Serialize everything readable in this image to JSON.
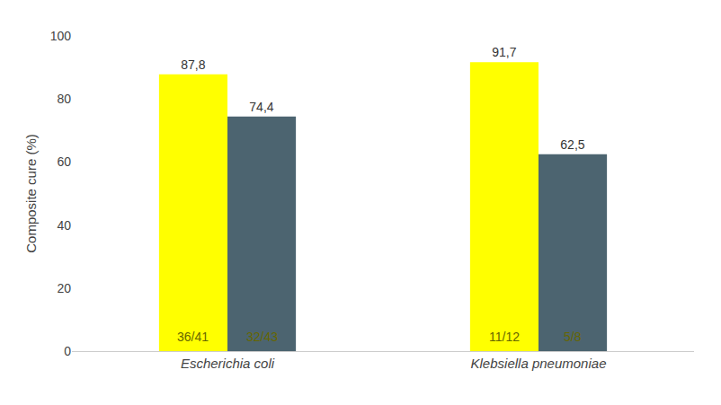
{
  "chart_data": {
    "type": "bar",
    "categories": [
      "Escherichia coli",
      "Klebsiella pneumoniae"
    ],
    "series": [
      {
        "color": "#FFFF00",
        "values": [
          87.8,
          91.7
        ],
        "value_labels": [
          "87,8",
          "91,7"
        ],
        "inside_labels": [
          "36/41",
          "11/12"
        ]
      },
      {
        "color": "#4C6470",
        "values": [
          74.4,
          62.5
        ],
        "value_labels": [
          "74,4",
          "62,5"
        ],
        "inside_labels": [
          "32/43",
          "5/8"
        ]
      }
    ],
    "y_label": "Composite cure (%)",
    "ylim": [
      0,
      100
    ],
    "yticks": [
      0,
      20,
      40,
      60,
      80,
      100
    ],
    "grid": false,
    "data_labels": true
  }
}
